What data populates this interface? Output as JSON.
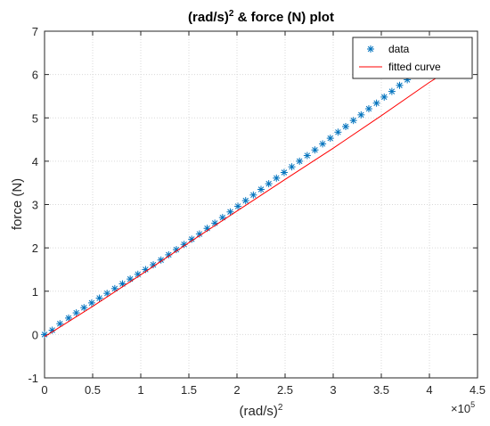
{
  "chart_data": {
    "type": "scatter",
    "title_main": "(rad/s)",
    "title_sup": "2",
    "title_rest": " & force (N) plot",
    "xlabel_main": "(rad/s)",
    "xlabel_sup": "2",
    "ylabel": "force (N)",
    "x_multiplier_base": "×10",
    "x_multiplier_exp": "5",
    "xlim": [
      0,
      4.5
    ],
    "ylim": [
      -1,
      7
    ],
    "x_ticks": [
      0,
      0.5,
      1,
      1.5,
      2,
      2.5,
      3,
      3.5,
      4,
      4.5
    ],
    "x_tick_labels": [
      "0",
      "0.5",
      "1",
      "1.5",
      "2",
      "2.5",
      "3",
      "3.5",
      "4",
      "4.5"
    ],
    "y_ticks": [
      -1,
      0,
      1,
      2,
      3,
      4,
      5,
      6,
      7
    ],
    "y_tick_labels": [
      "-1",
      "0",
      "1",
      "2",
      "3",
      "4",
      "5",
      "6",
      "7"
    ],
    "grid": true,
    "legend_position": "top-right",
    "legend": [
      {
        "label": "data",
        "marker": "asterisk",
        "color": "#0072BD"
      },
      {
        "label": "fitted curve",
        "marker": "line",
        "color": "#FF0000"
      }
    ],
    "series": [
      {
        "name": "data",
        "kind": "scatter",
        "color": "#0072BD",
        "x": [
          0.0,
          0.08,
          0.16,
          0.25,
          0.33,
          0.41,
          0.49,
          0.57,
          0.65,
          0.73,
          0.81,
          0.89,
          0.97,
          1.05,
          1.13,
          1.21,
          1.29,
          1.37,
          1.45,
          1.53,
          1.61,
          1.69,
          1.77,
          1.85,
          1.93,
          2.01,
          2.09,
          2.17,
          2.25,
          2.33,
          2.41,
          2.49,
          2.57,
          2.65,
          2.73,
          2.81,
          2.89,
          2.97,
          3.05,
          3.13,
          3.21,
          3.29,
          3.37,
          3.45,
          3.53,
          3.61,
          3.69,
          3.77,
          3.85,
          3.93,
          4.01
        ],
        "y": [
          0.0,
          0.1,
          0.25,
          0.38,
          0.5,
          0.62,
          0.73,
          0.84,
          0.95,
          1.06,
          1.17,
          1.28,
          1.39,
          1.5,
          1.61,
          1.72,
          1.84,
          1.96,
          2.08,
          2.2,
          2.32,
          2.45,
          2.57,
          2.7,
          2.83,
          2.96,
          3.09,
          3.22,
          3.35,
          3.48,
          3.61,
          3.74,
          3.87,
          4.0,
          4.13,
          4.26,
          4.4,
          4.53,
          4.67,
          4.8,
          4.94,
          5.07,
          5.21,
          5.34,
          5.48,
          5.61,
          5.75,
          5.88,
          6.02,
          6.15,
          6.29
        ]
      },
      {
        "name": "fitted curve",
        "kind": "line",
        "color": "#FF0000",
        "x": [
          0.0,
          0.5,
          1.0,
          1.5,
          2.0,
          2.5,
          3.0,
          3.5,
          4.0,
          4.1
        ],
        "y": [
          -0.05,
          0.65,
          1.38,
          2.12,
          2.85,
          3.58,
          4.3,
          5.05,
          5.82,
          5.96
        ]
      }
    ]
  }
}
